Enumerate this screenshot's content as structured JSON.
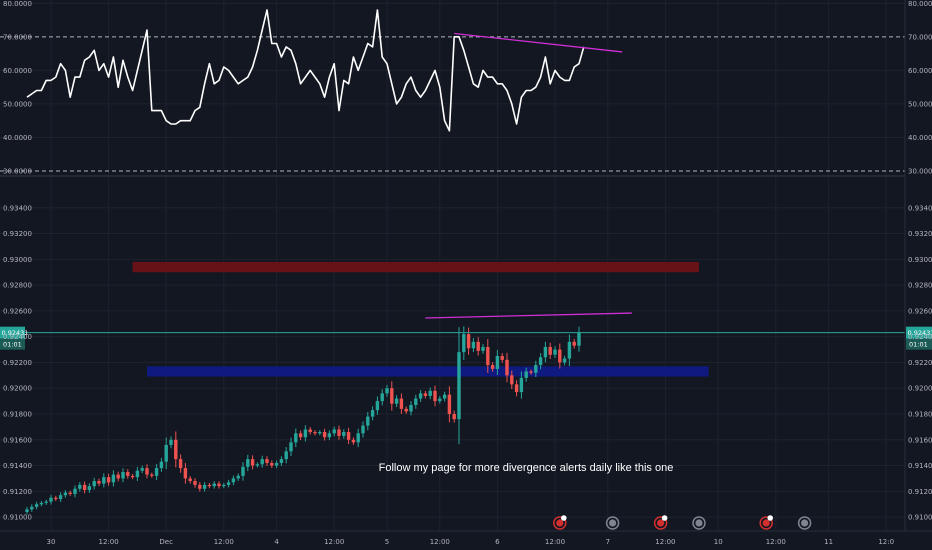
{
  "chart_data": [
    {
      "type": "line",
      "panel": "oscillator",
      "ylim": [
        30,
        80
      ],
      "y_ticks": [
        "80.0000",
        "70.0000",
        "60.0000",
        "50.0000",
        "40.0000",
        "30.0000"
      ],
      "y_tick_values": [
        80,
        70,
        60,
        50,
        40,
        30
      ],
      "dashed_levels": [
        70,
        30
      ],
      "series": [
        {
          "values": [
            52,
            53,
            54,
            54,
            57,
            57,
            58,
            62,
            60,
            52,
            58,
            58,
            63,
            64,
            66,
            60,
            62,
            58,
            64,
            55,
            63,
            58,
            54,
            60,
            66,
            72,
            48,
            48,
            48,
            45,
            44,
            44,
            45,
            45,
            45,
            48,
            49,
            56,
            62,
            56,
            57,
            61,
            60,
            58,
            56,
            57,
            58,
            61,
            66,
            72,
            78,
            68,
            68,
            64,
            67,
            66,
            62,
            56,
            58,
            60,
            58,
            56,
            52,
            58,
            62,
            48,
            57,
            56,
            64,
            60,
            64,
            68,
            67,
            78,
            64,
            62,
            56,
            50,
            52,
            56,
            58,
            54,
            52,
            54,
            57,
            60,
            55,
            45,
            42,
            70,
            70,
            66,
            61,
            56,
            55,
            60,
            58,
            58,
            56,
            56,
            54,
            50,
            44,
            52,
            54,
            54,
            55,
            58,
            64,
            56,
            60,
            58,
            57,
            57,
            61,
            62,
            67
          ]
        }
      ],
      "trendline": {
        "from": [
          89,
          71
        ],
        "to": [
          124,
          65.5
        ],
        "color": "#d12fd6"
      }
    },
    {
      "type": "candlestick",
      "panel": "price",
      "ylim": [
        0.909,
        0.936
      ],
      "y_ticks": [
        "0.93400",
        "0.93200",
        "0.93000",
        "0.92800",
        "0.92600",
        "0.92400",
        "0.92200",
        "0.92000",
        "0.91800",
        "0.91600",
        "0.91400",
        "0.91200",
        "0.91000"
      ],
      "y_tick_values": [
        0.934,
        0.932,
        0.93,
        0.928,
        0.926,
        0.924,
        0.922,
        0.92,
        0.918,
        0.916,
        0.914,
        0.912,
        0.91
      ],
      "x_ticks": [
        {
          "label": "30",
          "i": 5
        },
        {
          "label": "12:00",
          "i": 17
        },
        {
          "label": "Dec",
          "i": 29
        },
        {
          "label": "12:00",
          "i": 41
        },
        {
          "label": "4",
          "i": 52
        },
        {
          "label": "12:00",
          "i": 64
        },
        {
          "label": "5",
          "i": 75
        },
        {
          "label": "12:00",
          "i": 86
        },
        {
          "label": "6",
          "i": 98
        },
        {
          "label": "12:00",
          "i": 110
        },
        {
          "label": "7",
          "i": 121
        },
        {
          "label": "12:00",
          "i": 133
        },
        {
          "label": "10",
          "i": 144
        },
        {
          "label": "12:00",
          "i": 156
        },
        {
          "label": "11",
          "i": 167
        },
        {
          "label": "12:0",
          "i": 179
        }
      ],
      "closes": [
        0.9106,
        0.9108,
        0.911,
        0.9111,
        0.9112,
        0.9115,
        0.9114,
        0.9117,
        0.9119,
        0.9118,
        0.9122,
        0.9125,
        0.9121,
        0.9124,
        0.9128,
        0.9126,
        0.9131,
        0.9127,
        0.9133,
        0.913,
        0.9135,
        0.9132,
        0.9131,
        0.9136,
        0.9138,
        0.9133,
        0.9132,
        0.9138,
        0.9143,
        0.9156,
        0.916,
        0.9145,
        0.9138,
        0.913,
        0.9128,
        0.9125,
        0.9122,
        0.9125,
        0.9124,
        0.9126,
        0.9124,
        0.9125,
        0.9127,
        0.913,
        0.9132,
        0.9139,
        0.9145,
        0.914,
        0.9141,
        0.9145,
        0.9142,
        0.914,
        0.9142,
        0.9145,
        0.9151,
        0.9158,
        0.9165,
        0.9162,
        0.9168,
        0.9166,
        0.9165,
        0.9166,
        0.9162,
        0.9165,
        0.9168,
        0.9163,
        0.9166,
        0.916,
        0.9158,
        0.9165,
        0.9171,
        0.9178,
        0.9183,
        0.919,
        0.9196,
        0.92,
        0.9188,
        0.9192,
        0.9184,
        0.9182,
        0.9187,
        0.9192,
        0.9196,
        0.9194,
        0.9198,
        0.919,
        0.9192,
        0.9195,
        0.918,
        0.9176,
        0.9228,
        0.9242,
        0.9231,
        0.9236,
        0.9229,
        0.9232,
        0.9218,
        0.9215,
        0.9225,
        0.9222,
        0.921,
        0.9203,
        0.9197,
        0.9208,
        0.9213,
        0.9212,
        0.9218,
        0.9224,
        0.9232,
        0.9226,
        0.923,
        0.922,
        0.9223,
        0.9236,
        0.9233,
        0.9243
      ],
      "zones": [
        {
          "from_i": 22,
          "to_i": 140,
          "top": 0.9298,
          "bottom": 0.929,
          "color": "#6b1216"
        },
        {
          "from_i": 25,
          "to_i": 142,
          "top": 0.9217,
          "bottom": 0.9209,
          "color": "#0f1a86"
        }
      ],
      "trendline": {
        "from": [
          83,
          0.92545
        ],
        "to": [
          126,
          0.92583
        ],
        "color": "#d12fd6"
      },
      "last_price": {
        "value": 0.92431,
        "label": "0.92431",
        "timer": "01:01",
        "color": "#26a69a"
      },
      "annotation": "Follow my page for more divergence alerts daily like this one",
      "event_markers": [
        {
          "i": 111,
          "kind": "earnings",
          "color": "#d32f2f"
        },
        {
          "i": 122,
          "kind": "dividends",
          "color": "#7e8591"
        },
        {
          "i": 132,
          "kind": "earnings",
          "color": "#d32f2f"
        },
        {
          "i": 140,
          "kind": "dividends",
          "color": "#7e8591"
        },
        {
          "i": 154,
          "kind": "earnings",
          "color": "#d32f2f"
        },
        {
          "i": 162,
          "kind": "dividends",
          "color": "#7e8591"
        }
      ]
    }
  ],
  "theme": {
    "background": "#131722",
    "grid": "#1e222d",
    "up": "#26a69a",
    "down": "#ef5350",
    "line": "#ffffff",
    "separator": "#2a2e39"
  }
}
